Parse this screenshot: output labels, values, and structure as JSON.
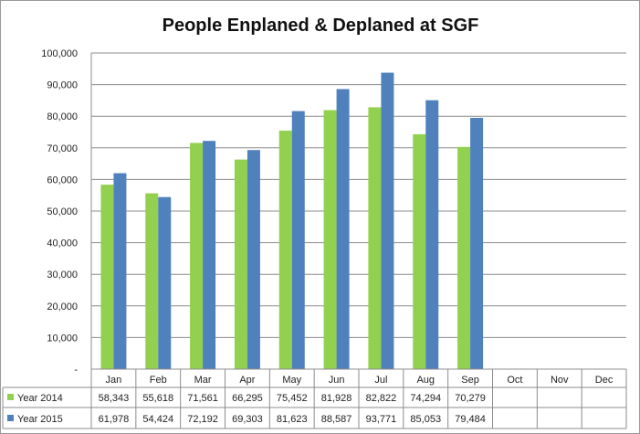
{
  "chart_data": {
    "type": "bar",
    "title": "People Enplaned & Deplaned at SGF",
    "categories": [
      "Jan",
      "Feb",
      "Mar",
      "Apr",
      "May",
      "Jun",
      "Jul",
      "Aug",
      "Sep",
      "Oct",
      "Nov",
      "Dec"
    ],
    "series": [
      {
        "name": "Year 2014",
        "color": "#92d050",
        "values": [
          58343,
          55618,
          71561,
          66295,
          75452,
          81928,
          82822,
          74294,
          70279,
          null,
          null,
          null
        ],
        "labels": [
          "58,343",
          "55,618",
          "71,561",
          "66,295",
          "75,452",
          "81,928",
          "82,822",
          "74,294",
          "70,279",
          "",
          "",
          ""
        ]
      },
      {
        "name": "Year 2015",
        "color": "#4f81bd",
        "values": [
          61978,
          54424,
          72192,
          69303,
          81623,
          88587,
          93771,
          85053,
          79484,
          null,
          null,
          null
        ],
        "labels": [
          "61,978",
          "54,424",
          "72,192",
          "69,303",
          "81,623",
          "88,587",
          "93,771",
          "85,053",
          "79,484",
          "",
          "",
          ""
        ]
      }
    ],
    "ylim": [
      0,
      100000
    ],
    "yticks": [
      0,
      10000,
      20000,
      30000,
      40000,
      50000,
      60000,
      70000,
      80000,
      90000,
      100000
    ],
    "ytick_labels": [
      "-",
      "10,000",
      "20,000",
      "30,000",
      "40,000",
      "50,000",
      "60,000",
      "70,000",
      "80,000",
      "90,000",
      "100,000"
    ],
    "grid": true,
    "legend": "data-table"
  }
}
